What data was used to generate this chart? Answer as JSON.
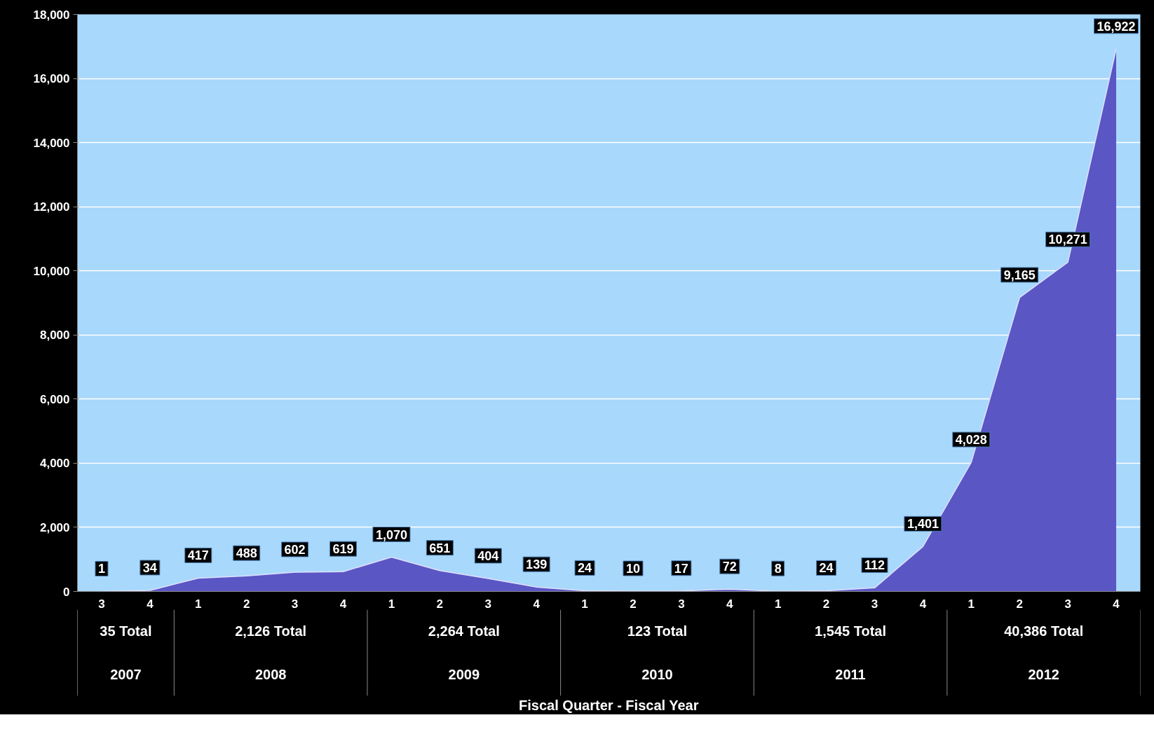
{
  "chart_data": {
    "type": "area",
    "categories": [
      "3",
      "4",
      "1",
      "2",
      "3",
      "4",
      "1",
      "2",
      "3",
      "4",
      "1",
      "2",
      "3",
      "4",
      "1",
      "2",
      "3",
      "4",
      "1",
      "2",
      "3",
      "4"
    ],
    "series": [
      {
        "color": "#5a56c4",
        "values": [
          1,
          34,
          417,
          488,
          602,
          619,
          1070,
          651,
          404,
          139,
          24,
          10,
          17,
          72,
          8,
          24,
          112,
          1401,
          4028,
          9165,
          10271,
          16922
        ],
        "value_labels": [
          "1",
          "34",
          "417",
          "488",
          "602",
          "619",
          "1,070",
          "651",
          "404",
          "139",
          "24",
          "10",
          "17",
          "72",
          "8",
          "24",
          "112",
          "1,401",
          "4,028",
          "9,165",
          "10,271",
          "16,922"
        ]
      }
    ],
    "ylim": [
      0,
      18000
    ],
    "yticks": [
      0,
      {
        "value": 2000,
        "label": "2,000"
      },
      {
        "value": 4000,
        "label": "4,000"
      },
      {
        "value": 6000,
        "label": "6,000"
      },
      {
        "value": 8000,
        "label": "8,000"
      },
      {
        "value": 10000,
        "label": "10,000"
      },
      {
        "value": 12000,
        "label": "12,000"
      },
      {
        "value": 14000,
        "label": "14,000"
      },
      {
        "value": 16000,
        "label": "16,000"
      },
      {
        "value": 18000,
        "label": "18,000"
      }
    ],
    "grid": "y",
    "annotations": [
      "35 Total",
      "2007",
      "2,126 Total",
      "2008",
      "2,264 Total",
      "2009",
      "123 Total",
      "2010",
      "1,545 Total",
      "2011",
      "40,386 Total",
      "2012",
      "Fiscal Quarter - Fiscal Year"
    ]
  }
}
